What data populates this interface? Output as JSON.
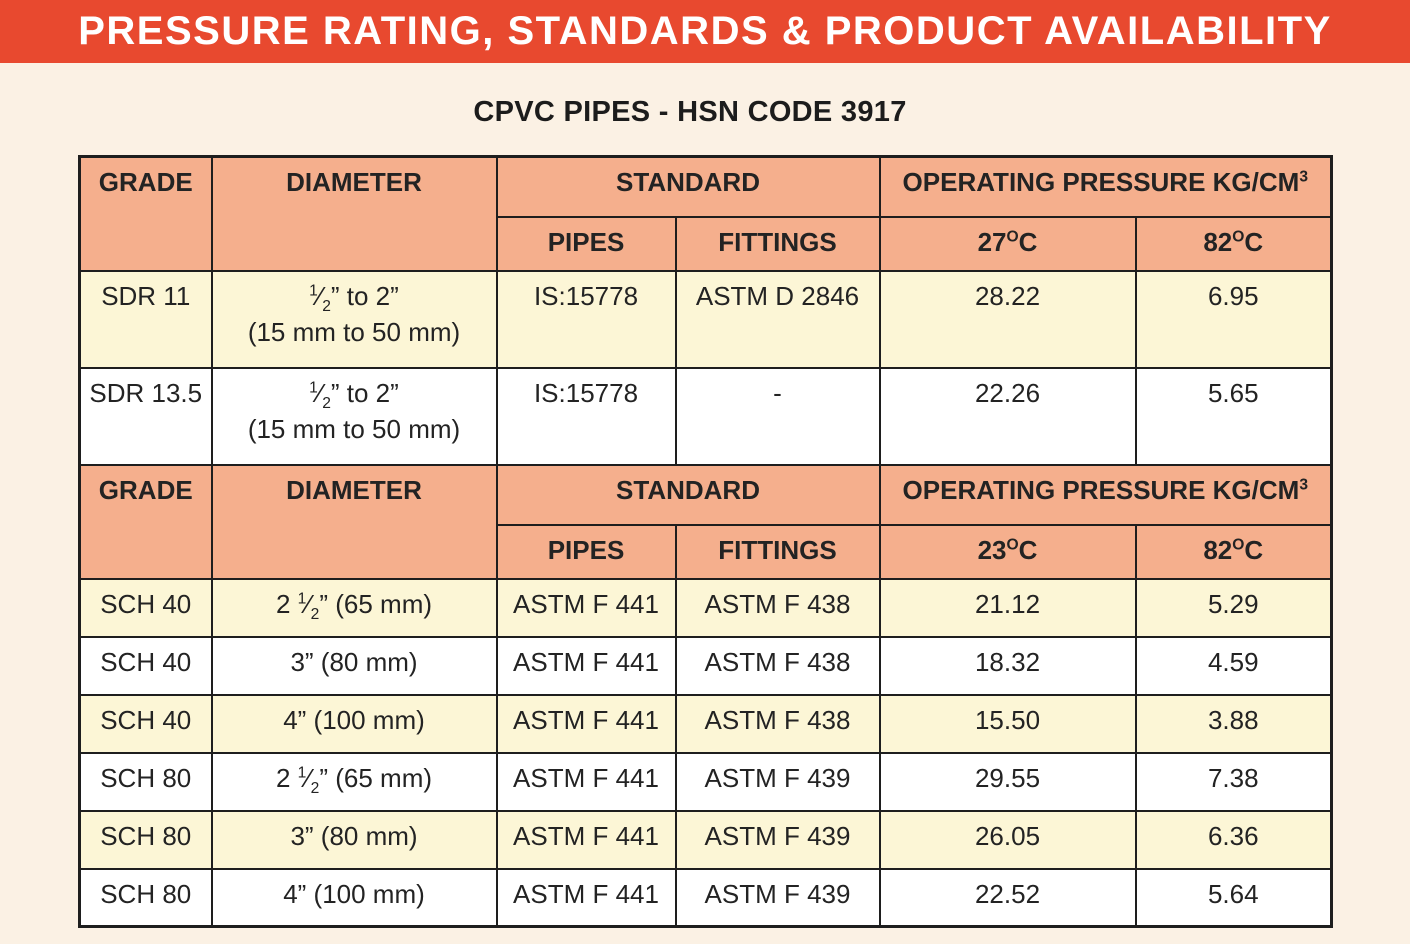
{
  "banner": {
    "title": "PRESSURE RATING, STANDARDS & PRODUCT AVAILABILITY"
  },
  "subtitle": "CPVC PIPES - HSN CODE 3917",
  "colors": {
    "banner_bg": "#E8492F",
    "page_bg": "#FBF1E4",
    "header_cell_bg": "#F5AF8D",
    "row_yellow": "#FCF6D6",
    "row_white": "#FFFFFF",
    "border": "#1E1E1E",
    "title_text": "#FFFFFF",
    "body_text": "#232323"
  },
  "table": {
    "sections": [
      {
        "header": {
          "grade": "GRADE",
          "diameter": "DIAMETER",
          "standard": "STANDARD",
          "pressure": [
            [
              "t",
              "OPERATING PRESSURE KG/CM"
            ],
            [
              "sup",
              "3"
            ]
          ],
          "pipes": "PIPES",
          "fittings": "FITTINGS",
          "temps": [
            [
              [
                "t",
                "27"
              ],
              [
                "sup",
                "O"
              ],
              [
                "t",
                "C"
              ]
            ],
            [
              [
                "t",
                "82"
              ],
              [
                "sup",
                "O"
              ],
              [
                "t",
                "C"
              ]
            ]
          ]
        },
        "rows": [
          {
            "grade": "SDR 11",
            "diameter": [
              [
                "sup",
                "1"
              ],
              [
                "t",
                "⁄"
              ],
              [
                "sub",
                "2"
              ],
              [
                "t",
                "” to 2”"
              ]
            ],
            "diameter2": "(15 mm to 50 mm)",
            "pipes": "IS:15778",
            "fittings": "ASTM D 2846",
            "pressures": [
              "28.22",
              "6.95"
            ],
            "shade": "yellow"
          },
          {
            "grade": "SDR 13.5",
            "diameter": [
              [
                "sup",
                "1"
              ],
              [
                "t",
                "⁄"
              ],
              [
                "sub",
                "2"
              ],
              [
                "t",
                "” to 2”"
              ]
            ],
            "diameter2": "(15 mm to 50 mm)",
            "pipes": "IS:15778",
            "fittings": "-",
            "pressures": [
              "22.26",
              "5.65"
            ],
            "shade": "white"
          }
        ]
      },
      {
        "header": {
          "grade": "GRADE",
          "diameter": "DIAMETER",
          "standard": "STANDARD",
          "pressure": [
            [
              "t",
              "OPERATING PRESSURE KG/CM"
            ],
            [
              "sup",
              "3"
            ]
          ],
          "pipes": "PIPES",
          "fittings": "FITTINGS",
          "temps": [
            [
              [
                "t",
                "23"
              ],
              [
                "sup",
                "O"
              ],
              [
                "t",
                "C"
              ]
            ],
            [
              [
                "t",
                "82"
              ],
              [
                "sup",
                "O"
              ],
              [
                "t",
                "C"
              ]
            ]
          ]
        },
        "rows": [
          {
            "grade": "SCH 40",
            "diameter": [
              [
                "t",
                "2 "
              ],
              [
                "sup",
                "1"
              ],
              [
                "t",
                "⁄"
              ],
              [
                "sub",
                "2"
              ],
              [
                "t",
                "” (65 mm)"
              ]
            ],
            "pipes": "ASTM F 441",
            "fittings": "ASTM F 438",
            "pressures": [
              "21.12",
              "5.29"
            ],
            "shade": "yellow"
          },
          {
            "grade": "SCH 40",
            "diameter": [
              [
                "t",
                "3” (80 mm)"
              ]
            ],
            "pipes": "ASTM F 441",
            "fittings": "ASTM F 438",
            "pressures": [
              "18.32",
              "4.59"
            ],
            "shade": "white"
          },
          {
            "grade": "SCH 40",
            "diameter": [
              [
                "t",
                "4” (100 mm)"
              ]
            ],
            "pipes": "ASTM F 441",
            "fittings": "ASTM F 438",
            "pressures": [
              "15.50",
              "3.88"
            ],
            "shade": "yellow"
          },
          {
            "grade": "SCH 80",
            "diameter": [
              [
                "t",
                "2 "
              ],
              [
                "sup",
                "1"
              ],
              [
                "t",
                "⁄"
              ],
              [
                "sub",
                "2"
              ],
              [
                "t",
                "” (65 mm)"
              ]
            ],
            "pipes": "ASTM F 441",
            "fittings": "ASTM F 439",
            "pressures": [
              "29.55",
              "7.38"
            ],
            "shade": "white"
          },
          {
            "grade": "SCH 80",
            "diameter": [
              [
                "t",
                "3” (80 mm)"
              ]
            ],
            "pipes": "ASTM F 441",
            "fittings": "ASTM F 439",
            "pressures": [
              "26.05",
              "6.36"
            ],
            "shade": "yellow"
          },
          {
            "grade": "SCH 80",
            "diameter": [
              [
                "t",
                "4” (100 mm)"
              ]
            ],
            "pipes": "ASTM F 441",
            "fittings": "ASTM F 439",
            "pressures": [
              "22.52",
              "5.64"
            ],
            "shade": "white"
          }
        ]
      }
    ]
  }
}
